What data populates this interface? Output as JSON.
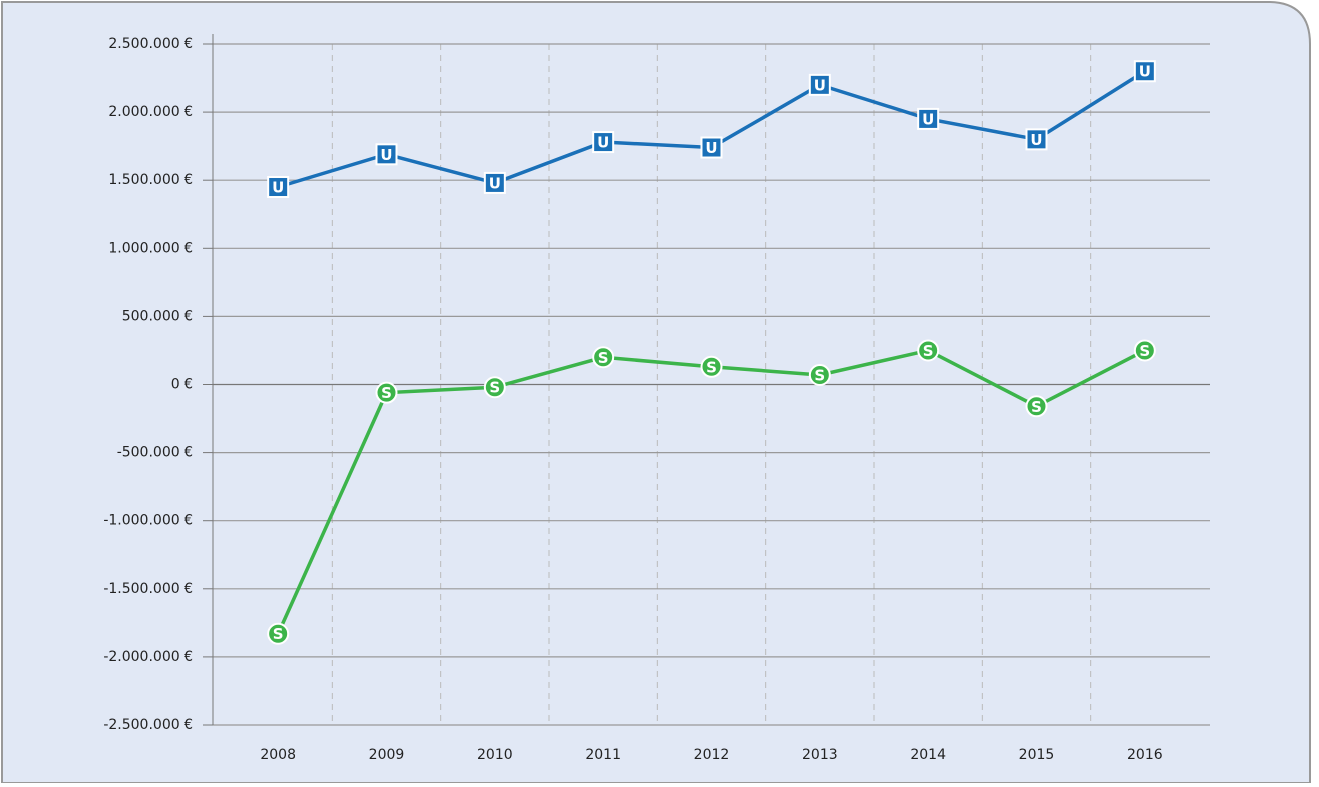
{
  "chart_data": {
    "type": "line",
    "categories": [
      "2008",
      "2009",
      "2010",
      "2011",
      "2012",
      "2013",
      "2014",
      "2015",
      "2016"
    ],
    "series": [
      {
        "name": "U",
        "color": "#1a70b8",
        "marker": "square",
        "values": [
          1450000,
          1690000,
          1480000,
          1780000,
          1740000,
          2200000,
          1950000,
          1800000,
          2300000
        ]
      },
      {
        "name": "S",
        "color": "#3cb44a",
        "marker": "circle",
        "values": [
          -1830000,
          -60000,
          -20000,
          200000,
          130000,
          70000,
          250000,
          -160000,
          250000
        ]
      }
    ],
    "ylim": [
      -2500000,
      2500000
    ],
    "yticks": [
      {
        "value": -2500000,
        "label": "-2.500.000 €"
      },
      {
        "value": -2000000,
        "label": "-2.000.000 €"
      },
      {
        "value": -1500000,
        "label": "-1.500.000 €"
      },
      {
        "value": -1000000,
        "label": "-1.000.000 €"
      },
      {
        "value": -500000,
        "label": "-500.000 €"
      },
      {
        "value": 0,
        "label": "0 €"
      },
      {
        "value": 500000,
        "label": "500.000 €"
      },
      {
        "value": 1000000,
        "label": "1.000.000 €"
      },
      {
        "value": 1500000,
        "label": "1.500.000 €"
      },
      {
        "value": 2000000,
        "label": "2.000.000 €"
      },
      {
        "value": 2500000,
        "label": "2.500.000 €"
      }
    ],
    "grid": true
  }
}
